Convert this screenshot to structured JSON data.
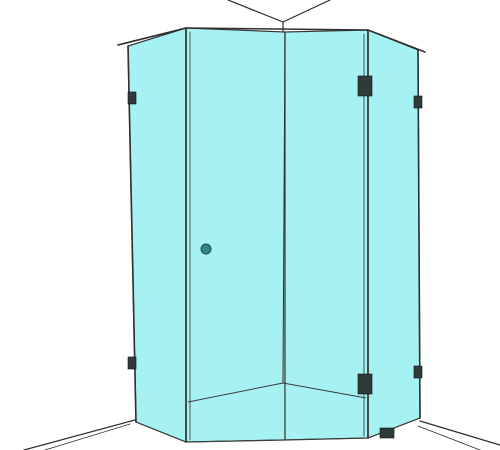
{
  "scene": {
    "subject": "glass-shower-enclosure-sketch",
    "glass_color": "#a6f2f2",
    "edge_color": "#3a3a3a",
    "hardware_color": "#2f3a3a",
    "knob_color": "#2f8a82"
  }
}
